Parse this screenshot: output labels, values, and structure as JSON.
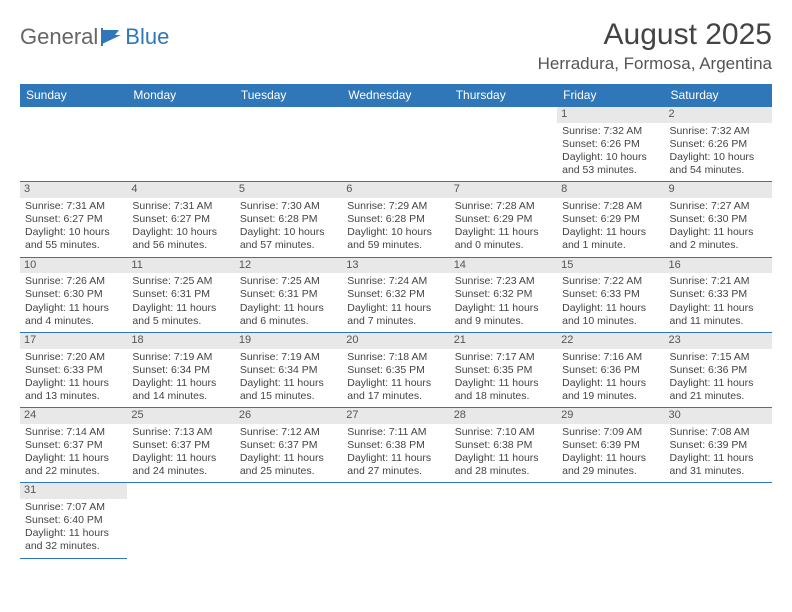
{
  "logo": {
    "text1": "General",
    "text2": "Blue"
  },
  "title": "August 2025",
  "location": "Herradura, Formosa, Argentina",
  "headers": [
    "Sunday",
    "Monday",
    "Tuesday",
    "Wednesday",
    "Thursday",
    "Friday",
    "Saturday"
  ],
  "colors": {
    "accent": "#2f77b9",
    "dayBg": "#e8e8e8"
  },
  "weeks": [
    [
      null,
      null,
      null,
      null,
      null,
      {
        "n": "1",
        "sr": "7:32 AM",
        "ss": "6:26 PM",
        "dl": "10 hours and 53 minutes."
      },
      {
        "n": "2",
        "sr": "7:32 AM",
        "ss": "6:26 PM",
        "dl": "10 hours and 54 minutes."
      }
    ],
    [
      {
        "n": "3",
        "sr": "7:31 AM",
        "ss": "6:27 PM",
        "dl": "10 hours and 55 minutes."
      },
      {
        "n": "4",
        "sr": "7:31 AM",
        "ss": "6:27 PM",
        "dl": "10 hours and 56 minutes."
      },
      {
        "n": "5",
        "sr": "7:30 AM",
        "ss": "6:28 PM",
        "dl": "10 hours and 57 minutes."
      },
      {
        "n": "6",
        "sr": "7:29 AM",
        "ss": "6:28 PM",
        "dl": "10 hours and 59 minutes."
      },
      {
        "n": "7",
        "sr": "7:28 AM",
        "ss": "6:29 PM",
        "dl": "11 hours and 0 minutes."
      },
      {
        "n": "8",
        "sr": "7:28 AM",
        "ss": "6:29 PM",
        "dl": "11 hours and 1 minute."
      },
      {
        "n": "9",
        "sr": "7:27 AM",
        "ss": "6:30 PM",
        "dl": "11 hours and 2 minutes."
      }
    ],
    [
      {
        "n": "10",
        "sr": "7:26 AM",
        "ss": "6:30 PM",
        "dl": "11 hours and 4 minutes."
      },
      {
        "n": "11",
        "sr": "7:25 AM",
        "ss": "6:31 PM",
        "dl": "11 hours and 5 minutes."
      },
      {
        "n": "12",
        "sr": "7:25 AM",
        "ss": "6:31 PM",
        "dl": "11 hours and 6 minutes."
      },
      {
        "n": "13",
        "sr": "7:24 AM",
        "ss": "6:32 PM",
        "dl": "11 hours and 7 minutes."
      },
      {
        "n": "14",
        "sr": "7:23 AM",
        "ss": "6:32 PM",
        "dl": "11 hours and 9 minutes."
      },
      {
        "n": "15",
        "sr": "7:22 AM",
        "ss": "6:33 PM",
        "dl": "11 hours and 10 minutes."
      },
      {
        "n": "16",
        "sr": "7:21 AM",
        "ss": "6:33 PM",
        "dl": "11 hours and 11 minutes."
      }
    ],
    [
      {
        "n": "17",
        "sr": "7:20 AM",
        "ss": "6:33 PM",
        "dl": "11 hours and 13 minutes."
      },
      {
        "n": "18",
        "sr": "7:19 AM",
        "ss": "6:34 PM",
        "dl": "11 hours and 14 minutes."
      },
      {
        "n": "19",
        "sr": "7:19 AM",
        "ss": "6:34 PM",
        "dl": "11 hours and 15 minutes."
      },
      {
        "n": "20",
        "sr": "7:18 AM",
        "ss": "6:35 PM",
        "dl": "11 hours and 17 minutes."
      },
      {
        "n": "21",
        "sr": "7:17 AM",
        "ss": "6:35 PM",
        "dl": "11 hours and 18 minutes."
      },
      {
        "n": "22",
        "sr": "7:16 AM",
        "ss": "6:36 PM",
        "dl": "11 hours and 19 minutes."
      },
      {
        "n": "23",
        "sr": "7:15 AM",
        "ss": "6:36 PM",
        "dl": "11 hours and 21 minutes."
      }
    ],
    [
      {
        "n": "24",
        "sr": "7:14 AM",
        "ss": "6:37 PM",
        "dl": "11 hours and 22 minutes."
      },
      {
        "n": "25",
        "sr": "7:13 AM",
        "ss": "6:37 PM",
        "dl": "11 hours and 24 minutes."
      },
      {
        "n": "26",
        "sr": "7:12 AM",
        "ss": "6:37 PM",
        "dl": "11 hours and 25 minutes."
      },
      {
        "n": "27",
        "sr": "7:11 AM",
        "ss": "6:38 PM",
        "dl": "11 hours and 27 minutes."
      },
      {
        "n": "28",
        "sr": "7:10 AM",
        "ss": "6:38 PM",
        "dl": "11 hours and 28 minutes."
      },
      {
        "n": "29",
        "sr": "7:09 AM",
        "ss": "6:39 PM",
        "dl": "11 hours and 29 minutes."
      },
      {
        "n": "30",
        "sr": "7:08 AM",
        "ss": "6:39 PM",
        "dl": "11 hours and 31 minutes."
      }
    ],
    [
      {
        "n": "31",
        "sr": "7:07 AM",
        "ss": "6:40 PM",
        "dl": "11 hours and 32 minutes."
      },
      null,
      null,
      null,
      null,
      null,
      null
    ]
  ],
  "labels": {
    "sunrise": "Sunrise: ",
    "sunset": "Sunset: ",
    "daylight": "Daylight: "
  }
}
